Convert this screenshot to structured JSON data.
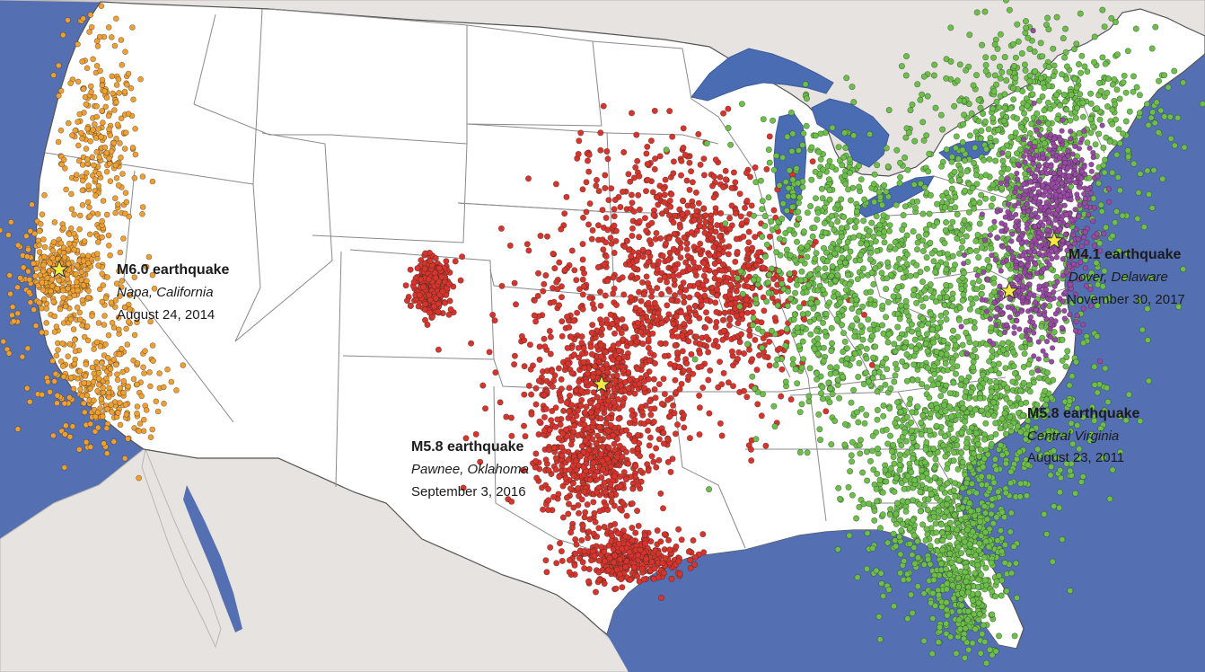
{
  "colors": {
    "ocean": "#5470b2",
    "land": "#ffffff",
    "foreign_land": "#e6e3e0",
    "lakes": "#4a6cb3",
    "state_border": "#8a8a8a",
    "dots_california": "#f0a030",
    "dots_central": "#d9342b",
    "dots_eastern": "#6cc04a",
    "dots_mid_atlantic": "#9a4aa6",
    "star": "#f4e842"
  },
  "events": [
    {
      "magnitude_label": "M6.0 earthquake",
      "place": "Napa, California",
      "date": "August 24, 2014",
      "marker": "star-icon"
    },
    {
      "magnitude_label": "M5.8 earthquake",
      "place": "Pawnee, Oklahoma",
      "date": "September 3, 2016",
      "marker": "star-icon"
    },
    {
      "magnitude_label": "M4.1 earthquake",
      "place": "Dover, Delaware",
      "date": "November 30, 2017",
      "marker": "star-icon"
    },
    {
      "magnitude_label": "M5.8 earthquake",
      "place": "Central Virginia",
      "date": "August 23, 2011",
      "marker": "star-icon"
    }
  ]
}
